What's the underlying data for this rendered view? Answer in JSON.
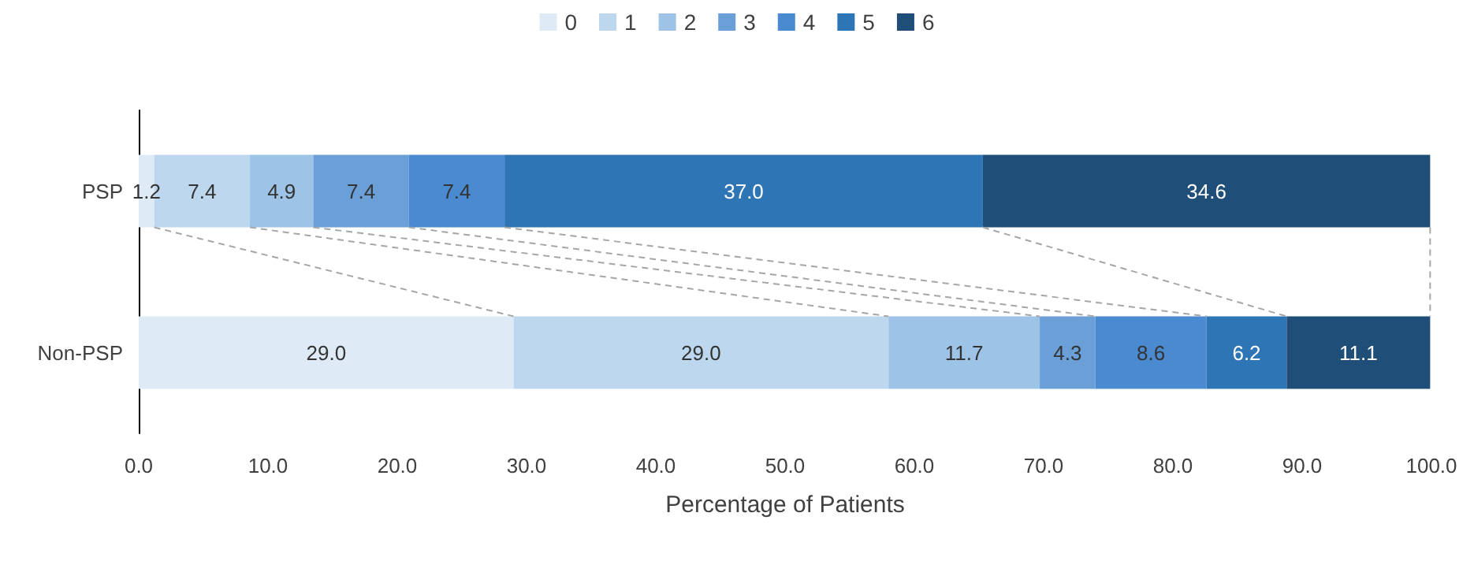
{
  "chart_data": {
    "type": "bar",
    "orientation": "horizontal",
    "stacked": true,
    "xlabel": "Percentage of Patients",
    "categories": [
      "PSP",
      "Non-PSP"
    ],
    "series": [
      {
        "name": "0",
        "color": "#deebf7",
        "values": [
          1.2,
          29.0
        ],
        "value_labels": [
          "1.2",
          "29.0"
        ]
      },
      {
        "name": "1",
        "color": "#bdd7ee",
        "values": [
          7.4,
          29.0
        ],
        "value_labels": [
          "7.4",
          "29.0"
        ]
      },
      {
        "name": "2",
        "color": "#9dc3e6",
        "values": [
          4.9,
          11.7
        ],
        "value_labels": [
          "4.9",
          "11.7"
        ]
      },
      {
        "name": "3",
        "color": "#6a9fd8",
        "values": [
          7.4,
          4.3
        ],
        "value_labels": [
          "7.4",
          "4.3"
        ]
      },
      {
        "name": "4",
        "color": "#4a8ad0",
        "values": [
          7.4,
          8.6
        ],
        "value_labels": [
          "7.4",
          "8.6"
        ]
      },
      {
        "name": "5",
        "color": "#2e75b6",
        "values": [
          37.0,
          6.2
        ],
        "value_labels": [
          "37.0",
          "6.2"
        ]
      },
      {
        "name": "6",
        "color": "#1f4e79",
        "values": [
          34.6,
          11.1
        ],
        "value_labels": [
          "34.6",
          "11.1"
        ]
      }
    ],
    "xlim": [
      0,
      100
    ],
    "xticks": [
      {
        "value": 0,
        "label": "0.0"
      },
      {
        "value": 10,
        "label": "10.0"
      },
      {
        "value": 20,
        "label": "20.0"
      },
      {
        "value": 30,
        "label": "30.0"
      },
      {
        "value": 40,
        "label": "40.0"
      },
      {
        "value": 50,
        "label": "50.0"
      },
      {
        "value": 60,
        "label": "60.0"
      },
      {
        "value": 70,
        "label": "70.0"
      },
      {
        "value": 80,
        "label": "80.0"
      },
      {
        "value": 90,
        "label": "90.0"
      },
      {
        "value": 100,
        "label": "100.0"
      }
    ],
    "grid": false,
    "legend": "top"
  }
}
